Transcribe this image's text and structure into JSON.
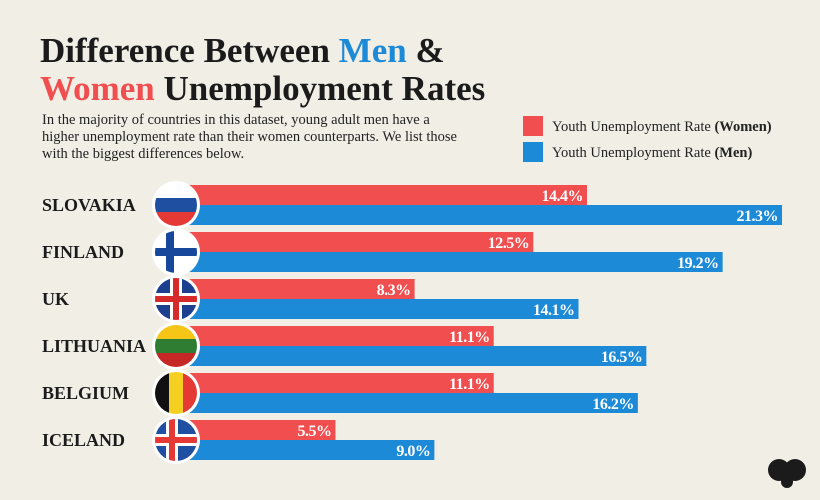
{
  "chart_data": {
    "type": "grouped-hbar",
    "title": [
      "Difference Between Men &",
      "Women Unemployment Rates"
    ],
    "title_highlights": [
      {
        "text": "Men",
        "color": "#1d8ad8"
      },
      {
        "text": "Women",
        "color": "#f04e4f"
      }
    ],
    "subtitle": "In the majority of countries in this dataset, young adult men have a higher unemployment rate than their women counterparts. We list those with the biggest differences below.",
    "categories": [
      "SLOVAKIA",
      "FINLAND",
      "UK",
      "LITHUANIA",
      "BELGIUM",
      "ICELAND"
    ],
    "series": [
      {
        "name": "Youth Unemployment Rate (Women)",
        "color": "#f04e4f",
        "values": [
          14.4,
          12.5,
          8.3,
          11.1,
          11.1,
          5.5
        ],
        "value_labels": [
          "14.4%",
          "12.5%",
          "8.3%",
          "11.1%",
          "11.1%",
          "5.5%"
        ]
      },
      {
        "name": "Youth Unemployment Rate (Men)",
        "color": "#1d8ad8",
        "values": [
          21.3,
          19.2,
          14.1,
          16.5,
          16.2,
          9.0
        ],
        "value_labels": [
          "21.3%",
          "19.2%",
          "14.1%",
          "16.5%",
          "16.2%",
          "9.0%"
        ]
      }
    ]
  }
}
